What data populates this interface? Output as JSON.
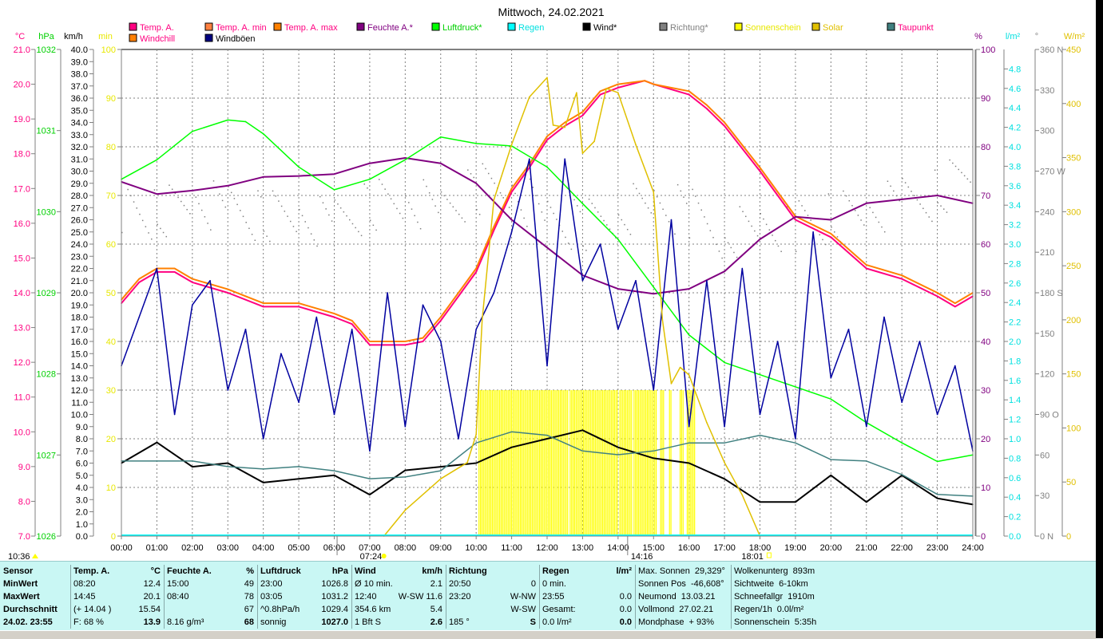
{
  "chart_data": {
    "type": "line",
    "title": "Mittwoch, 24.02.2021",
    "x_range_hours": [
      0,
      24
    ],
    "x_tick_labels": [
      "00:00",
      "01:00",
      "02:00",
      "03:00",
      "04:00",
      "05:00",
      "06:00",
      "07:00",
      "08:00",
      "09:00",
      "10:00",
      "11:00",
      "12:00",
      "13:00",
      "14:00",
      "15:00",
      "16:00",
      "17:00",
      "18:00",
      "19:00",
      "20:00",
      "21:00",
      "22:00",
      "23:00",
      "24:00"
    ],
    "axes": {
      "temp": {
        "unit": "°C",
        "range": [
          7,
          21
        ],
        "color": "#ff0080",
        "ticks": [
          "21.0",
          "20.0",
          "19.0",
          "18.0",
          "17.0",
          "16.0",
          "15.0",
          "14.0",
          "13.0",
          "12.0",
          "11.0",
          "10.0",
          "9.0",
          "8.0",
          "7.0"
        ]
      },
      "pressure": {
        "unit": "hPa",
        "range": [
          1026,
          1032
        ],
        "color": "#00d000",
        "ticks": [
          "1032",
          "1031",
          "1030",
          "1029",
          "1028",
          "1027",
          "1026"
        ]
      },
      "wind": {
        "unit": "km/h",
        "range": [
          0,
          40
        ],
        "color": "#000000",
        "ticks": [
          "40.0",
          "39.0",
          "38.0",
          "37.0",
          "36.0",
          "35.0",
          "34.0",
          "33.0",
          "32.0",
          "31.0",
          "30.0",
          "29.0",
          "28.0",
          "27.0",
          "26.0",
          "25.0",
          "24.0",
          "23.0",
          "22.0",
          "21.0",
          "20.0",
          "19.0",
          "18.0",
          "17.0",
          "16.0",
          "15.0",
          "14.0",
          "13.0",
          "12.0",
          "11.0",
          "10.0",
          "9.0",
          "8.0",
          "7.0",
          "6.0",
          "5.0",
          "4.0",
          "3.0",
          "2.0",
          "1.0",
          "0.0"
        ]
      },
      "minutes": {
        "unit": "min",
        "range": [
          0,
          100
        ],
        "color": "#e8e800",
        "ticks": [
          "100",
          "90",
          "80",
          "70",
          "60",
          "50",
          "40",
          "30",
          "20",
          "10",
          "0"
        ]
      },
      "humidity": {
        "unit": "%",
        "range": [
          0,
          100
        ],
        "color": "#800080",
        "ticks": [
          "100",
          "90",
          "80",
          "70",
          "60",
          "50",
          "40",
          "30",
          "20",
          "10",
          "0"
        ]
      },
      "rain": {
        "unit": "l/m²",
        "range": [
          0,
          5
        ],
        "color": "#00e0e0",
        "ticks": [
          "4.8",
          "4.6",
          "4.4",
          "4.2",
          "4.0",
          "3.8",
          "3.6",
          "3.4",
          "3.2",
          "3.0",
          "2.8",
          "2.6",
          "2.4",
          "2.2",
          "2.0",
          "1.8",
          "1.6",
          "1.4",
          "1.2",
          "1.0",
          "0.8",
          "0.6",
          "0.4",
          "0.2",
          "0.0"
        ]
      },
      "direction": {
        "unit": "°",
        "range": [
          0,
          360
        ],
        "color": "#808080",
        "ticks": [
          "360 N",
          "330",
          "300",
          "270 W",
          "240",
          "210",
          "180 S",
          "150",
          "120",
          "90 O",
          "60",
          "30",
          "0 N"
        ]
      },
      "solar": {
        "unit": "W/m²",
        "range": [
          0,
          450
        ],
        "color": "#e0c000",
        "ticks": [
          "450",
          "400",
          "350",
          "300",
          "250",
          "200",
          "150",
          "100",
          "50",
          "0"
        ]
      }
    },
    "legend": [
      {
        "label": "Temp. A.",
        "swatch": "#ff0080",
        "text_color": "#ff0080"
      },
      {
        "label": "Temp. A. min",
        "swatch": "#ff8040",
        "text_color": "#ff0080"
      },
      {
        "label": "Temp. A. max",
        "swatch": "#ff8000",
        "text_color": "#ff0080"
      },
      {
        "label": "Feuchte A.*",
        "swatch": "#800080",
        "text_color": "#800080"
      },
      {
        "label": "Luftdruck*",
        "swatch": "#00ff00",
        "text_color": "#00d000"
      },
      {
        "label": "Regen",
        "swatch": "#00ffff",
        "text_color": "#00e0e0"
      },
      {
        "label": "Wind*",
        "swatch": "#000000",
        "text_color": "#000000"
      },
      {
        "label": "Richtung*",
        "swatch": "#808080",
        "text_color": "#808080"
      },
      {
        "label": "Sonnenschein",
        "swatch": "#ffff00",
        "text_color": "#e8e800"
      },
      {
        "label": "Solar",
        "swatch": "#e0c000",
        "text_color": "#e0c000"
      },
      {
        "label": "Taupunkt",
        "swatch": "#408080",
        "text_color": "#ff0080"
      },
      {
        "label": "Windchill",
        "swatch": "#ff8000",
        "text_color": "#ff0080"
      },
      {
        "label": "Windböen",
        "swatch": "#000080",
        "text_color": "#000000"
      }
    ],
    "series": [
      {
        "name": "Temp. A.",
        "axis": "temp",
        "color": "#ff0080",
        "x": [
          0,
          0.5,
          1,
          1.5,
          2,
          3,
          4,
          5,
          6,
          6.5,
          7,
          8,
          8.5,
          9,
          10,
          10.5,
          11,
          11.5,
          12,
          12.5,
          13,
          13.5,
          14,
          14.75,
          15,
          16,
          16.5,
          17,
          18,
          18.5,
          19,
          20,
          21,
          22,
          23,
          23.5,
          24
        ],
        "values": [
          13.7,
          14.3,
          14.6,
          14.6,
          14.3,
          14.0,
          13.6,
          13.6,
          13.3,
          13.1,
          12.5,
          12.5,
          12.6,
          13.2,
          14.6,
          15.8,
          16.9,
          17.6,
          18.4,
          18.8,
          19.1,
          19.7,
          19.9,
          20.1,
          20.0,
          19.7,
          19.3,
          18.8,
          17.5,
          16.8,
          16.1,
          15.6,
          14.7,
          14.4,
          13.9,
          13.6,
          13.9
        ]
      },
      {
        "name": "Windchill",
        "axis": "temp",
        "color": "#ff8000",
        "x": [
          0,
          0.5,
          1,
          1.5,
          2,
          3,
          4,
          5,
          6,
          6.5,
          7,
          8,
          8.5,
          9,
          10,
          10.5,
          11,
          11.5,
          12,
          12.5,
          13,
          13.5,
          14,
          14.75,
          15,
          16,
          16.5,
          17,
          18,
          18.5,
          19,
          20,
          21,
          22,
          23,
          23.5,
          24
        ],
        "values": [
          13.8,
          14.4,
          14.7,
          14.7,
          14.4,
          14.1,
          13.7,
          13.7,
          13.4,
          13.2,
          12.6,
          12.6,
          12.7,
          13.3,
          14.7,
          15.9,
          17.0,
          17.7,
          18.5,
          18.9,
          19.2,
          19.8,
          20.0,
          20.1,
          20.0,
          19.8,
          19.4,
          18.9,
          17.6,
          16.9,
          16.2,
          15.7,
          14.8,
          14.5,
          14.0,
          13.7,
          14.0
        ]
      },
      {
        "name": "Feuchte A.",
        "axis": "humidity",
        "color": "#800080",
        "x": [
          0,
          1,
          2,
          3,
          4,
          5,
          6,
          7,
          8,
          9,
          10,
          11,
          12,
          13,
          14,
          15,
          16,
          17,
          18,
          19,
          20,
          21,
          22,
          23,
          24
        ],
        "values": [
          72.8,
          70.3,
          71,
          72,
          73.8,
          74,
          74.4,
          76.6,
          77.7,
          76.6,
          72.5,
          65,
          59.3,
          53.6,
          50.8,
          49.8,
          50.8,
          54.4,
          61,
          65.6,
          65,
          68.4,
          69.2,
          70,
          68.4
        ]
      },
      {
        "name": "Luftdruck",
        "axis": "pressure",
        "color": "#00ff00",
        "x": [
          0,
          1,
          2,
          3,
          3.5,
          4,
          5,
          6,
          7,
          8,
          9,
          10,
          11,
          12,
          13,
          14,
          15,
          16,
          17,
          18,
          19,
          20,
          21,
          22,
          23,
          24
        ],
        "values": [
          1030.4,
          1030.64,
          1030.99,
          1031.13,
          1031.11,
          1030.96,
          1030.55,
          1030.27,
          1030.4,
          1030.64,
          1030.92,
          1030.84,
          1030.81,
          1030.55,
          1030.1,
          1029.66,
          1029.07,
          1028.48,
          1028.14,
          1027.99,
          1027.84,
          1027.69,
          1027.4,
          1027.15,
          1026.92,
          1027.0
        ]
      },
      {
        "name": "Wind",
        "axis": "wind",
        "color": "#000000",
        "x": [
          0,
          1,
          2,
          3,
          4,
          5,
          6,
          7,
          8,
          9,
          10,
          11,
          12,
          13,
          14,
          15,
          16,
          17,
          18,
          19,
          20,
          21,
          22,
          23,
          24
        ],
        "values": [
          6.0,
          7.7,
          5.7,
          6.0,
          4.4,
          4.7,
          5.0,
          3.4,
          5.4,
          5.7,
          6.0,
          7.3,
          8.0,
          8.7,
          7.3,
          6.4,
          6.0,
          4.7,
          2.8,
          2.8,
          5.0,
          2.8,
          5.0,
          3.1,
          2.6
        ]
      },
      {
        "name": "Taupunkt",
        "axis": "temp",
        "color": "#408080",
        "x": [
          0,
          1,
          2,
          3,
          4,
          5,
          6,
          7,
          8,
          9,
          10,
          11,
          12,
          13,
          14,
          15,
          16,
          17,
          18,
          19,
          20,
          21,
          22,
          23,
          24
        ],
        "values": [
          9.16,
          9.16,
          9.16,
          9.0,
          8.93,
          9.0,
          8.88,
          8.65,
          8.7,
          8.88,
          9.68,
          10.0,
          9.9,
          9.45,
          9.34,
          9.45,
          9.68,
          9.68,
          9.9,
          9.68,
          9.2,
          9.16,
          8.77,
          8.2,
          8.15
        ]
      },
      {
        "name": "Windböen",
        "axis": "wind",
        "color": "#0000a0",
        "x": [
          0,
          0.5,
          1,
          1.5,
          2,
          2.5,
          3,
          3.5,
          4,
          4.5,
          5,
          5.5,
          6,
          6.5,
          7,
          7.5,
          8,
          8.5,
          9,
          9.5,
          10,
          10.5,
          11,
          11.5,
          12,
          12.5,
          13,
          13.5,
          14,
          14.5,
          15,
          15.5,
          16,
          16.5,
          17,
          17.5,
          18,
          18.5,
          19,
          19.5,
          20,
          20.5,
          21,
          21.5,
          22,
          22.5,
          23,
          23.5,
          24
        ],
        "values": [
          14,
          18,
          22,
          10,
          19,
          21,
          12,
          17,
          8,
          15,
          11,
          18,
          10,
          17,
          7,
          20,
          9,
          19,
          16,
          8,
          17,
          20,
          25,
          31,
          14,
          31,
          21,
          24,
          17,
          21,
          12,
          26,
          9,
          21,
          9,
          22,
          10,
          16,
          8,
          25,
          13,
          17,
          9,
          18,
          11,
          16,
          10,
          14,
          7
        ]
      },
      {
        "name": "Solar",
        "axis": "solar",
        "color": "#e0c000",
        "x": [
          7.4,
          8,
          9,
          9.75,
          10,
          10.17,
          10.5,
          11,
          11.5,
          12,
          12.17,
          12.5,
          12.83,
          13,
          13.33,
          13.67,
          14,
          14.5,
          15,
          15.25,
          15.5,
          15.75,
          16,
          16.5,
          17,
          17.5,
          18
        ],
        "values": [
          0,
          24,
          53,
          68,
          94,
          200,
          311,
          362,
          406,
          424,
          380,
          378,
          410,
          354,
          365,
          414,
          410,
          362,
          318,
          200,
          141,
          156,
          149,
          105,
          68,
          38,
          0
        ]
      }
    ],
    "direction_hourly": {
      "axis": "direction",
      "color": "#808080",
      "x": [
        0,
        1,
        2,
        3,
        4,
        5,
        6,
        7,
        8,
        9,
        10,
        11,
        12,
        13,
        14,
        15,
        16,
        17,
        18,
        19,
        20,
        21,
        22,
        23,
        24
      ],
      "values": [
        245,
        238,
        250,
        240,
        235,
        238,
        232,
        245,
        250,
        240,
        255,
        260,
        235,
        230,
        240,
        245,
        238,
        225,
        230,
        230,
        235,
        240,
        245,
        255,
        275
      ]
    },
    "sunshine": {
      "axis": "minutes",
      "color": "#ffff00",
      "value_per_sample": 5,
      "intervals": [
        [
          10.08,
          12.6
        ],
        [
          12.65,
          14.0
        ],
        [
          14.05,
          14.4
        ],
        [
          14.45,
          15.1
        ],
        [
          15.2,
          15.3
        ],
        [
          15.45,
          15.5
        ],
        [
          15.75,
          15.85
        ],
        [
          15.95,
          16.2
        ]
      ]
    },
    "rain_total": 0.0
  },
  "markers": {
    "moon": "10:36",
    "sunrise": "07:24",
    "transit": "14:16",
    "sunset": "18:01"
  },
  "table": {
    "columns": [
      {
        "rows": [
          [
            "Sensor",
            ""
          ],
          [
            "MinWert",
            ""
          ],
          [
            "MaxWert",
            ""
          ],
          [
            "Durchschnitt",
            ""
          ],
          [
            "24.02. 23:55",
            ""
          ]
        ],
        "bold_all": true
      },
      {
        "header": [
          "Temp. A.",
          "°C"
        ],
        "rows": [
          [
            "08:20",
            "12.4"
          ],
          [
            "14:45",
            "20.1"
          ],
          [
            "(+ 14.04 )",
            "15.54"
          ],
          [
            "F: 68 %",
            "13.9"
          ]
        ]
      },
      {
        "header": [
          "Feuchte A.",
          "%"
        ],
        "rows": [
          [
            "15:00",
            "49"
          ],
          [
            "08:40",
            "78"
          ],
          [
            "",
            "67"
          ],
          [
            "8.16 g/m³",
            "68"
          ]
        ]
      },
      {
        "header": [
          "Luftdruck",
          "hPa"
        ],
        "rows": [
          [
            "23:00",
            "1026.8"
          ],
          [
            "03:05",
            "1031.2"
          ],
          [
            "^0.8hPa/h",
            "1029.4"
          ],
          [
            "sonnig",
            "1027.0"
          ]
        ]
      },
      {
        "header": [
          "Wind",
          "km/h"
        ],
        "rows": [
          [
            "Ø 10 min.",
            "2.1"
          ],
          [
            "12:40",
            "W-SW 11.6"
          ],
          [
            "354.6 km",
            "5.4"
          ],
          [
            "1 Bft S",
            "2.6"
          ]
        ]
      },
      {
        "header": [
          "Richtung",
          ""
        ],
        "rows": [
          [
            "20:50",
            "0"
          ],
          [
            "23:20",
            "W-NW"
          ],
          [
            "",
            "W-SW"
          ],
          [
            "185 °",
            "S"
          ]
        ]
      },
      {
        "header": [
          "Regen",
          "l/m²"
        ],
        "rows": [
          [
            "0 min.",
            ""
          ],
          [
            "23:55",
            "0.0"
          ],
          [
            "Gesamt:",
            "0.0"
          ],
          [
            "0.0 l/m²",
            "0.0"
          ]
        ]
      },
      {
        "rows": [
          [
            "Max. Sonnen",
            "29,329°"
          ],
          [
            "Sonnen Pos",
            "-46,608°"
          ],
          [
            "Neumond",
            "13.03.21"
          ],
          [
            "Vollmond",
            "27.02.21"
          ],
          [
            "Mondphase",
            "+ 93%"
          ]
        ]
      },
      {
        "rows": [
          [
            "Wolkenunterg",
            "893m"
          ],
          [
            "Sichtweite",
            "6-10km"
          ],
          [
            "Schneefallgr",
            "1910m"
          ],
          [
            "Regen/1h",
            "0.0l/m²"
          ],
          [
            "Sonnenschein",
            "5:35h"
          ]
        ]
      }
    ]
  }
}
